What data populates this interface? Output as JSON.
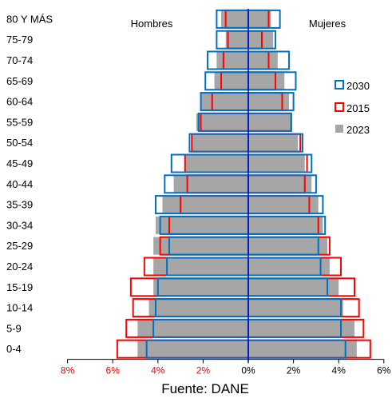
{
  "chart_data": {
    "type": "bar",
    "subtype": "population-pyramid",
    "xlim": [
      -8,
      6
    ],
    "x_ticks": [
      {
        "value": -8,
        "label": "8%"
      },
      {
        "value": -6,
        "label": "6%"
      },
      {
        "value": -4,
        "label": "4%"
      },
      {
        "value": -2,
        "label": "2%"
      },
      {
        "value": 0,
        "label": "0%"
      },
      {
        "value": 2,
        "label": "2%"
      },
      {
        "value": 4,
        "label": "4%"
      },
      {
        "value": 6,
        "label": "6%"
      }
    ],
    "left_header": "Hombres",
    "right_header": "Mujeres",
    "legend_position": "right",
    "grid": false,
    "categories": [
      "0-4",
      "5-9",
      "10-14",
      "15-19",
      "20-24",
      "25-29",
      "30-34",
      "35-39",
      "40-44",
      "45-49",
      "50-54",
      "55-59",
      "60-64",
      "65-69",
      "70-74",
      "75-79",
      "80 Y MÁS"
    ],
    "series": [
      {
        "name": "2023",
        "style": "filled",
        "color": "#a6a6a6",
        "men": [
          4.9,
          4.9,
          4.4,
          4.2,
          4.2,
          4.2,
          4.1,
          3.8,
          3.3,
          2.8,
          2.5,
          2.3,
          2.1,
          1.5,
          1.4,
          1.0,
          1.2
        ],
        "women": [
          4.8,
          4.7,
          4.2,
          4.0,
          3.6,
          3.5,
          3.3,
          3.1,
          2.8,
          2.5,
          2.2,
          1.9,
          1.8,
          1.6,
          1.3,
          1.1,
          1.0
        ]
      },
      {
        "name": "2015",
        "style": "outline",
        "color": "#ff0000",
        "men": [
          5.8,
          5.4,
          5.1,
          5.2,
          4.6,
          3.9,
          3.5,
          3.0,
          2.7,
          2.8,
          2.5,
          2.1,
          1.6,
          1.2,
          1.1,
          0.9,
          1.0
        ],
        "women": [
          5.4,
          5.1,
          4.9,
          4.7,
          4.1,
          3.6,
          3.1,
          2.7,
          2.5,
          2.6,
          2.3,
          1.9,
          1.5,
          1.2,
          0.9,
          0.6,
          0.9
        ]
      },
      {
        "name": "2030",
        "style": "outline",
        "color": "#0070c0",
        "men": [
          4.5,
          4.2,
          4.1,
          4.0,
          3.6,
          3.5,
          3.9,
          4.1,
          3.7,
          3.4,
          2.6,
          2.2,
          2.1,
          1.9,
          1.8,
          1.4,
          1.4
        ],
        "women": [
          4.3,
          4.1,
          4.1,
          3.5,
          3.2,
          3.1,
          3.4,
          3.3,
          3.0,
          2.8,
          2.4,
          1.9,
          2.0,
          2.1,
          1.8,
          1.2,
          1.4
        ]
      }
    ],
    "legend": [
      "2030",
      "2015",
      "2023"
    ]
  },
  "footer": {
    "source": "Fuente: DANE"
  }
}
